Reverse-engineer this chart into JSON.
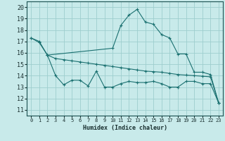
{
  "xlabel": "Humidex (Indice chaleur)",
  "xlim": [
    -0.5,
    23.5
  ],
  "ylim": [
    10.5,
    20.5
  ],
  "yticks": [
    11,
    12,
    13,
    14,
    15,
    16,
    17,
    18,
    19,
    20
  ],
  "xticks": [
    0,
    1,
    2,
    3,
    4,
    5,
    6,
    7,
    8,
    9,
    10,
    11,
    12,
    13,
    14,
    15,
    16,
    17,
    18,
    19,
    20,
    21,
    22,
    23
  ],
  "bg_color": "#c8eaea",
  "grid_color": "#9dcece",
  "line_color": "#1a7070",
  "curve1_x": [
    0,
    1,
    2,
    10,
    11,
    12,
    13,
    14,
    15,
    16,
    17,
    18,
    19,
    20,
    21,
    22,
    23
  ],
  "curve1_y": [
    17.3,
    17.0,
    15.8,
    16.4,
    18.4,
    19.3,
    19.8,
    18.7,
    18.5,
    17.6,
    17.3,
    15.9,
    15.9,
    14.3,
    14.3,
    14.1,
    11.6
  ],
  "curve2_x": [
    0,
    1,
    2,
    3,
    4,
    5,
    6,
    7,
    8,
    9,
    10,
    11,
    12,
    13,
    14,
    15,
    16,
    17,
    18,
    19,
    20,
    21,
    22,
    23
  ],
  "curve2_y": [
    17.3,
    16.9,
    15.8,
    15.5,
    15.4,
    15.3,
    15.2,
    15.1,
    15.0,
    14.9,
    14.8,
    14.7,
    14.6,
    14.5,
    14.4,
    14.35,
    14.3,
    14.2,
    14.1,
    14.05,
    14.0,
    13.95,
    13.9,
    11.6
  ],
  "curve3_x": [
    2,
    3,
    4,
    5,
    6,
    7,
    8,
    9,
    10,
    11,
    12,
    13,
    14,
    15,
    16,
    17,
    18,
    19,
    20,
    21,
    22,
    23
  ],
  "curve3_y": [
    15.8,
    14.0,
    13.2,
    13.6,
    13.6,
    13.1,
    14.4,
    13.0,
    13.0,
    13.3,
    13.5,
    13.4,
    13.4,
    13.5,
    13.3,
    13.0,
    13.0,
    13.5,
    13.5,
    13.3,
    13.3,
    11.6
  ]
}
